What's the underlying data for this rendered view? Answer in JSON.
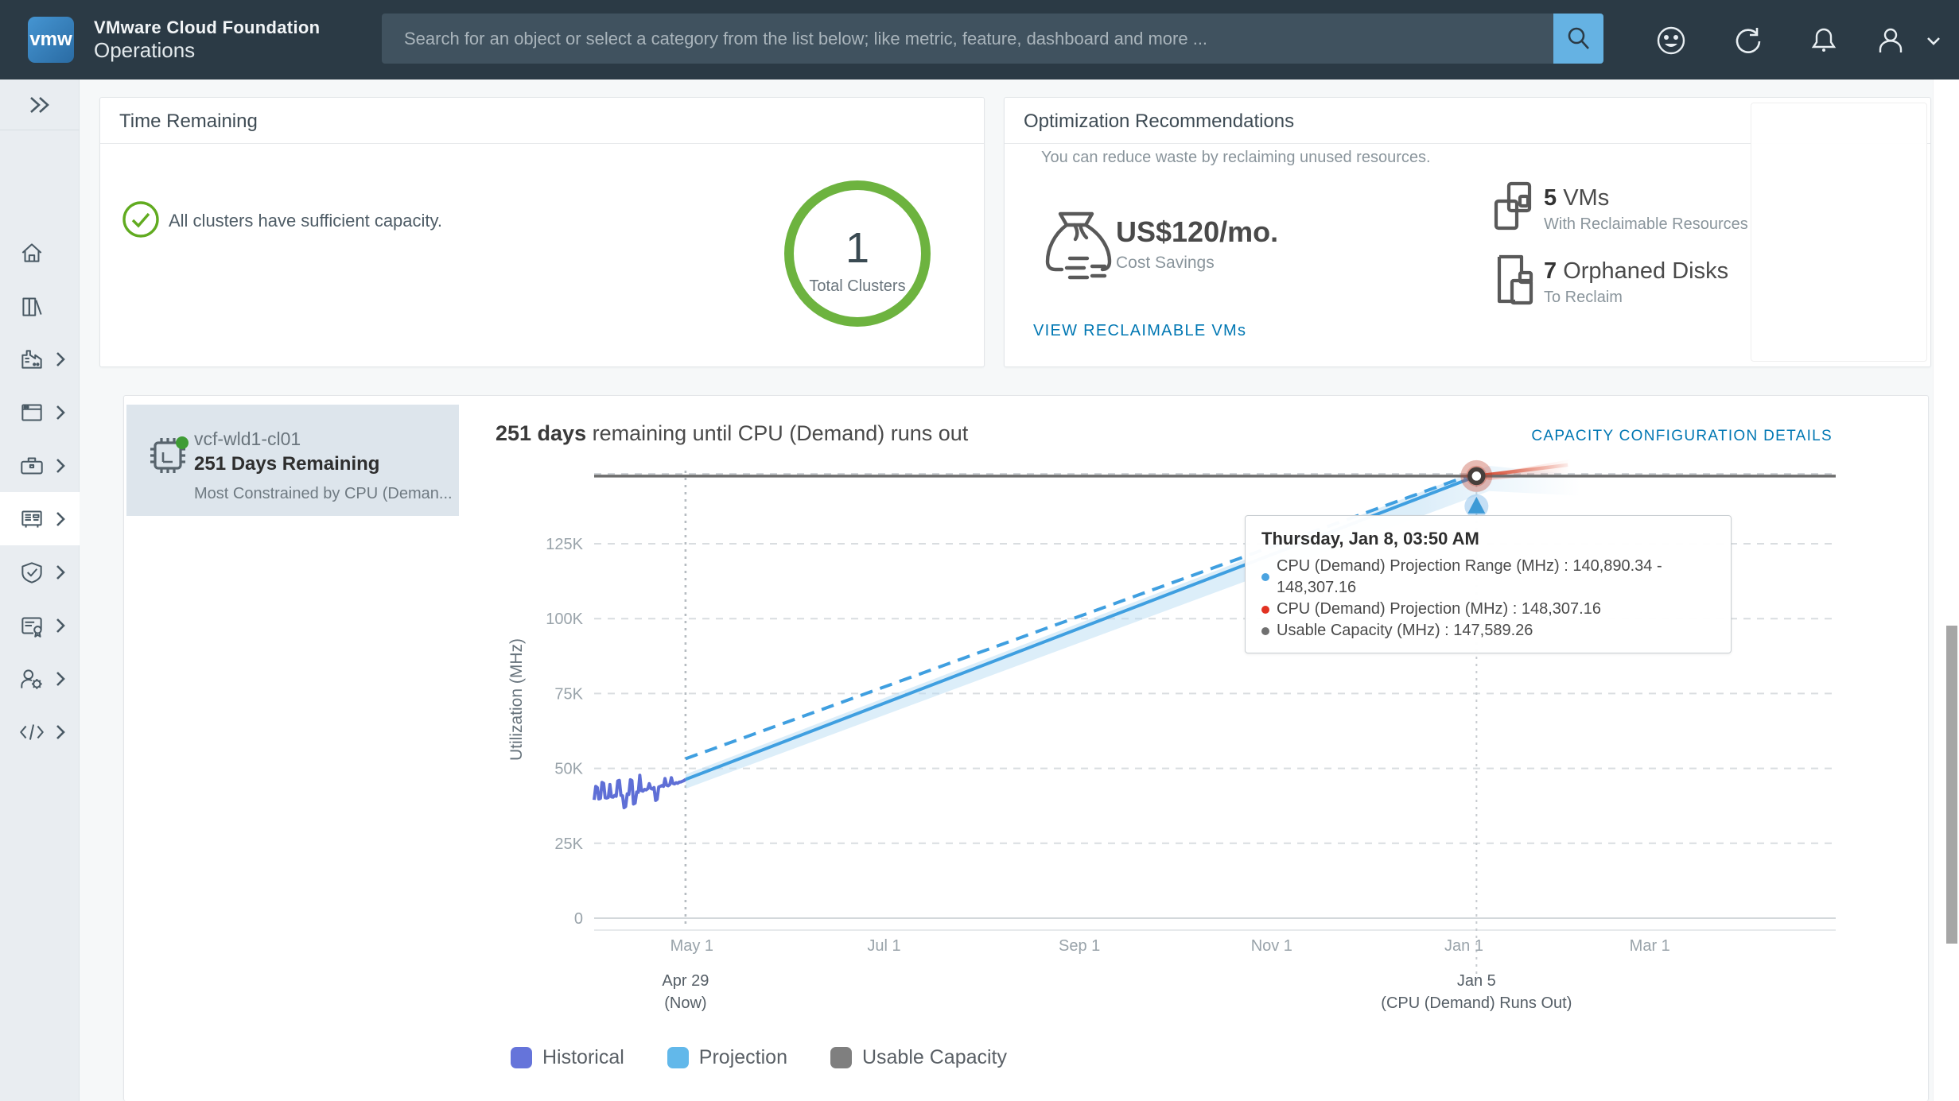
{
  "header": {
    "app_line1": "VMware Cloud Foundation",
    "app_line2": "Operations",
    "logo_text": "vmw",
    "search_placeholder": "Search for an object or select a category from the list below; like metric, feature, dashboard and more ...",
    "icons": [
      "feedback-smiley-icon",
      "refresh-icon",
      "notifications-bell-icon",
      "user-icon",
      "chevron-down-icon"
    ]
  },
  "sidebar": {
    "expand_icon": "double-chevron-right-icon",
    "items": [
      {
        "name": "home",
        "icon": "home-icon",
        "chevron": false,
        "active": false
      },
      {
        "name": "library",
        "icon": "library-icon",
        "chevron": false,
        "active": false
      },
      {
        "name": "environment",
        "icon": "factory-icon",
        "chevron": true,
        "active": false
      },
      {
        "name": "dashboards",
        "icon": "window-icon",
        "chevron": true,
        "active": false
      },
      {
        "name": "tools",
        "icon": "toolbox-icon",
        "chevron": true,
        "active": false
      },
      {
        "name": "capacity",
        "icon": "report-icon",
        "chevron": true,
        "active": true
      },
      {
        "name": "compliance",
        "icon": "shield-check-icon",
        "chevron": true,
        "active": false
      },
      {
        "name": "licensing",
        "icon": "certificate-icon",
        "chevron": true,
        "active": false
      },
      {
        "name": "administration",
        "icon": "user-gear-icon",
        "chevron": true,
        "active": false
      },
      {
        "name": "developer",
        "icon": "code-icon",
        "chevron": true,
        "active": false
      }
    ]
  },
  "time_card": {
    "title": "Time Remaining",
    "status_text": "All clusters have sufficient capacity.",
    "status_color": "#61ab20",
    "ring_value": "1",
    "ring_label": "Total Clusters",
    "ring_color": "#6db33f"
  },
  "opt_card": {
    "title": "Optimization Recommendations",
    "subtitle": "You can reduce waste by reclaiming unused resources.",
    "cost_value": "US$120/mo.",
    "cost_label": "Cost Savings",
    "vms_count": "5",
    "vms_unit": " VMs",
    "vms_sub": "With Reclaimable Resources",
    "disks_count": "7",
    "disks_unit": " Orphaned Disks",
    "disks_sub": "To Reclaim",
    "link": "VIEW RECLAIMABLE VMs"
  },
  "cluster_panel": {
    "name": "vcf-wld1-cl01",
    "days": "251 Days Remaining",
    "constraint": "Most Constrained by CPU (Deman...",
    "status_dot_color": "#3f9c35"
  },
  "capacity_section": {
    "title_bold": "251 days",
    "title_rest": " remaining until CPU (Demand) runs out",
    "config_link": "CAPACITY CONFIGURATION DETAILS"
  },
  "tooltip": {
    "title": "Thursday, Jan 8, 03:50 AM",
    "rows": [
      {
        "color": "#4aa3e0",
        "text": "CPU (Demand) Projection Range (MHz) : 140,890.34 - 148,307.16"
      },
      {
        "color": "#e23222",
        "text": "CPU (Demand) Projection (MHz) : 148,307.16"
      },
      {
        "color": "#707070",
        "text": "Usable Capacity (MHz) : 147,589.26"
      }
    ]
  },
  "chart_data": {
    "type": "line",
    "title": "251 days remaining until CPU (Demand) runs out",
    "ylabel": "Utilization (MHz)",
    "ylim": [
      0,
      155000
    ],
    "y_ticks": [
      {
        "label": "0",
        "value": 0
      },
      {
        "label": "25K",
        "value": 25000
      },
      {
        "label": "50K",
        "value": 50000
      },
      {
        "label": "75K",
        "value": 75000
      },
      {
        "label": "100K",
        "value": 100000
      },
      {
        "label": "125K",
        "value": 125000
      }
    ],
    "xlim_days": [
      -1,
      393
    ],
    "x_ticks": [
      {
        "label": "May 1",
        "day": 30
      },
      {
        "label": "Jul 1",
        "day": 91
      },
      {
        "label": "Sep 1",
        "day": 153
      },
      {
        "label": "Nov 1",
        "day": 214
      },
      {
        "label": "Jan 1",
        "day": 275
      },
      {
        "label": "Mar 1",
        "day": 334
      }
    ],
    "now_marker": {
      "day": 28,
      "label1": "Apr 29",
      "label2": "(Now)"
    },
    "runs_out_marker": {
      "day": 279,
      "label1": "Jan 5",
      "label2": "(CPU (Demand) Runs Out)"
    },
    "usable_capacity_mhz": 147589.26,
    "hover_value_mhz": 148307.16,
    "grid": "dashed",
    "legend_position": "bottom",
    "legend": [
      {
        "label": "Historical",
        "color": "#6574da"
      },
      {
        "label": "Projection",
        "color": "#62b8ea"
      },
      {
        "label": "Usable Capacity",
        "color": "#7f7f7f"
      }
    ],
    "series": {
      "historical": {
        "name": "Historical",
        "color": "#5f6fd6",
        "points": [
          [
            -1,
            39500
          ],
          [
            -0.5,
            44000
          ],
          [
            0,
            43600
          ],
          [
            0.5,
            39800
          ],
          [
            1,
            40000
          ],
          [
            1.5,
            45300
          ],
          [
            2,
            45000
          ],
          [
            2.5,
            40200
          ],
          [
            3,
            40100
          ],
          [
            3.5,
            40300
          ],
          [
            4,
            44600
          ],
          [
            4.5,
            40500
          ],
          [
            5,
            40400
          ],
          [
            5.5,
            41000
          ],
          [
            6,
            40700
          ],
          [
            6.5,
            45800
          ],
          [
            7,
            46000
          ],
          [
            7.5,
            41000
          ],
          [
            8,
            40900
          ],
          [
            8.5,
            36900
          ],
          [
            9,
            37300
          ],
          [
            9.5,
            41500
          ],
          [
            10,
            41300
          ],
          [
            10.5,
            46200
          ],
          [
            11,
            45900
          ],
          [
            11.5,
            38100
          ],
          [
            12,
            38400
          ],
          [
            12.5,
            42100
          ],
          [
            13,
            42000
          ],
          [
            13.5,
            47700
          ],
          [
            14,
            42600
          ],
          [
            14.5,
            42400
          ],
          [
            15,
            43000
          ],
          [
            15.5,
            42800
          ],
          [
            16,
            43200
          ],
          [
            16.5,
            44900
          ],
          [
            17,
            43300
          ],
          [
            17.5,
            43100
          ],
          [
            18,
            43600
          ],
          [
            18.5,
            39300
          ],
          [
            19,
            39700
          ],
          [
            19.5,
            43800
          ],
          [
            20,
            44000
          ],
          [
            20.5,
            44300
          ],
          [
            21,
            44000
          ],
          [
            21.5,
            46600
          ],
          [
            22,
            44400
          ],
          [
            22.5,
            44200
          ],
          [
            23,
            44600
          ],
          [
            23.5,
            46900
          ],
          [
            24,
            45000
          ],
          [
            24.5,
            44800
          ],
          [
            25,
            45200
          ],
          [
            25.5,
            45000
          ],
          [
            26,
            45400
          ],
          [
            26.5,
            45500
          ],
          [
            27,
            45700
          ],
          [
            27.5,
            45900
          ],
          [
            28,
            46300
          ]
        ]
      },
      "projection_solid": {
        "name": "Projection",
        "color": "#3f9fe0",
        "points": [
          [
            28,
            46300
          ],
          [
            279,
            147589
          ]
        ]
      },
      "projection_upper_dashed": {
        "name": "Projection Range (upper)",
        "color": "#3f9fe0",
        "points": [
          [
            28,
            53200
          ],
          [
            280,
            149100
          ]
        ]
      },
      "projection_band": {
        "name": "Projection Range band",
        "color": "#b9dcf3",
        "points": [
          [
            28,
            48000
          ],
          [
            283,
            151000
          ],
          [
            312,
            148000
          ],
          [
            312,
            141000
          ],
          [
            283,
            142600
          ],
          [
            28,
            43200
          ]
        ]
      },
      "overflow_red": {
        "name": "Over Capacity",
        "color": "#d9472b",
        "points": [
          [
            279,
            147589
          ],
          [
            308,
            151300
          ]
        ]
      },
      "overflow_wedge": {
        "name": "Over Capacity band",
        "color": "#e2543a",
        "points": [
          [
            279,
            147589
          ],
          [
            309,
            153200
          ],
          [
            309,
            148600
          ],
          [
            283,
            146300
          ]
        ]
      }
    }
  }
}
